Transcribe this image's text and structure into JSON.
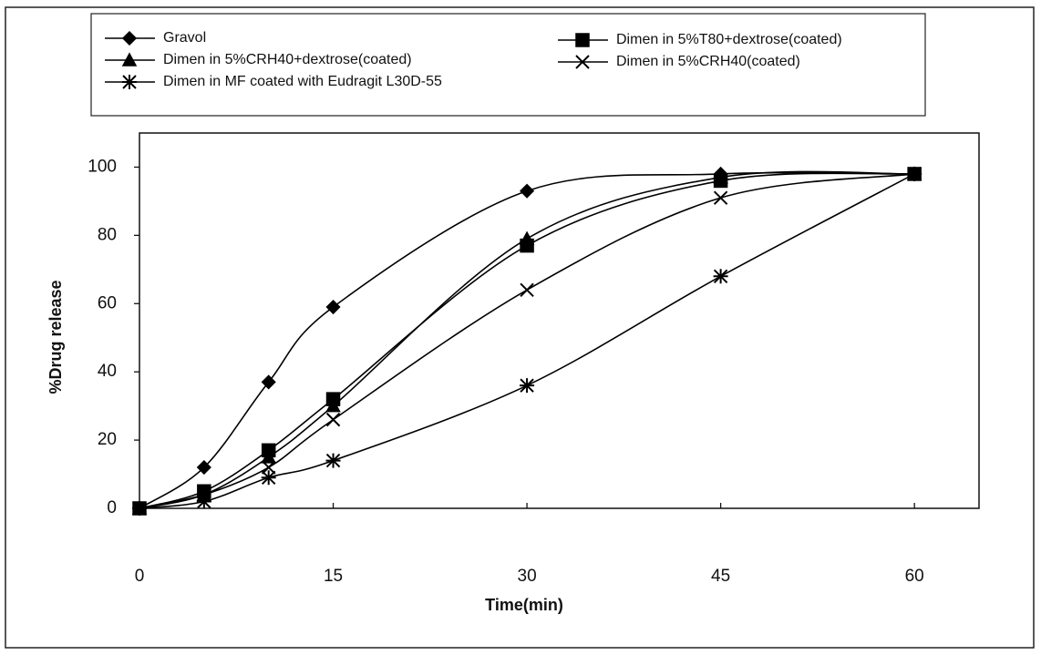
{
  "chart_data": {
    "type": "line",
    "x_label": "Time(min)",
    "y_label": "%Drug release",
    "x": [
      0,
      5,
      10,
      15,
      30,
      45,
      60
    ],
    "series": [
      {
        "name": "Gravol",
        "color": "#000000",
        "marker": "diamond",
        "values": [
          0,
          12,
          37,
          59,
          93,
          98,
          98
        ]
      },
      {
        "name": "Dimen in 5%T80+dextrose(coated)",
        "color": "#000000",
        "marker": "square",
        "values": [
          0,
          5,
          17,
          32,
          77,
          96,
          98
        ]
      },
      {
        "name": "Dimen in 5%CRH40+dextrose(coated)",
        "color": "#000000",
        "marker": "triangle",
        "values": [
          0,
          4,
          15,
          30,
          79,
          97,
          98
        ]
      },
      {
        "name": "Dimen in 5%CRH40(coated)",
        "color": "#000000",
        "marker": "cross",
        "values": [
          0,
          4,
          12,
          26,
          64,
          91,
          98
        ]
      },
      {
        "name": "Dimen in MF coated with Eudragit L30D-55",
        "color": "#000000",
        "marker": "star",
        "values": [
          0,
          2,
          9,
          14,
          36,
          68,
          98
        ]
      }
    ],
    "xlim": [
      0,
      65
    ],
    "xticks": [
      0,
      15,
      30,
      45,
      60
    ],
    "ylim": [
      0,
      110
    ],
    "yticks": [
      0,
      20,
      40,
      60,
      80,
      100
    ],
    "smooth": true
  }
}
